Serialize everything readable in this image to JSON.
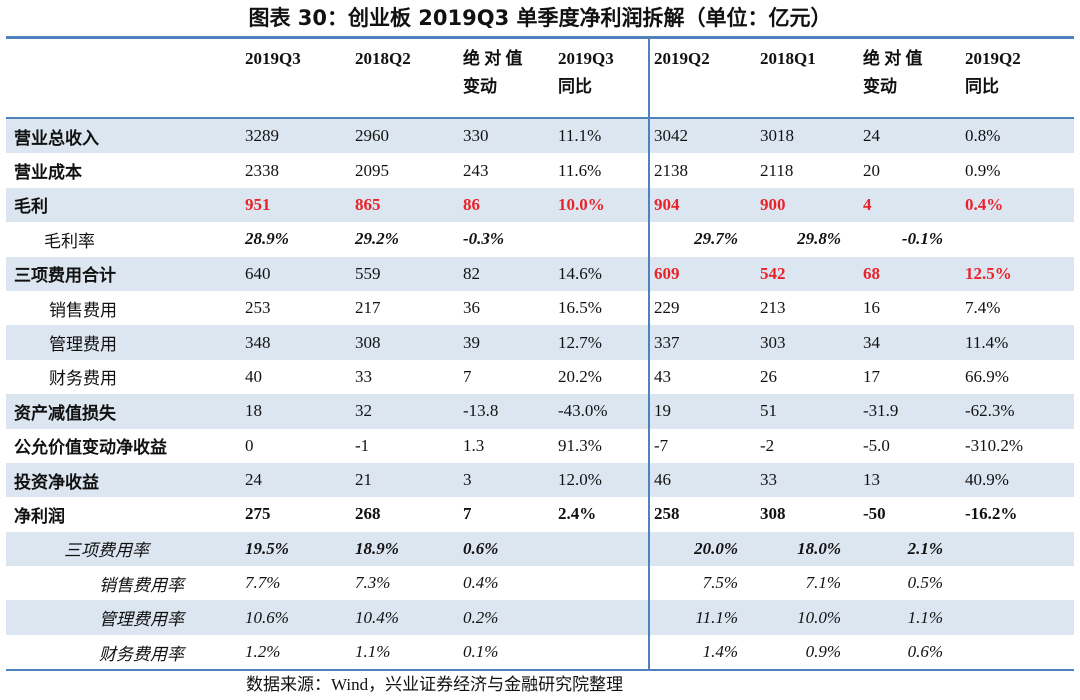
{
  "title": "图表 30：创业板 2019Q3 单季度净利润拆解（单位：亿元）",
  "table": {
    "headers": [
      [
        "2019Q3"
      ],
      [
        "2018Q2"
      ],
      [
        "绝 对 值",
        "变动"
      ],
      [
        "2019Q3",
        "同比"
      ],
      [
        "2019Q2"
      ],
      [
        "2018Q1"
      ],
      [
        "绝 对 值",
        "变动"
      ],
      [
        "2019Q2",
        "同比"
      ]
    ],
    "rows": [
      {
        "label": "营业总收入",
        "cells": [
          "3289",
          "2960",
          "330",
          "11.1%",
          "3042",
          "3018",
          "24",
          "0.8%"
        ]
      },
      {
        "label": "营业成本",
        "cells": [
          "2338",
          "2095",
          "243",
          "11.6%",
          "2138",
          "2118",
          "20",
          "0.9%"
        ]
      },
      {
        "label": "毛利",
        "cells": [
          "951",
          "865",
          "86",
          "10.0%",
          "904",
          "900",
          "4",
          "0.4%"
        ]
      },
      {
        "label": "毛利率",
        "cells": [
          "28.9%",
          "29.2%",
          "-0.3%",
          null,
          "29.7%",
          "29.8%",
          "-0.1%",
          null
        ]
      },
      {
        "label": "三项费用合计",
        "cells": [
          "640",
          "559",
          "82",
          "14.6%",
          "609",
          "542",
          "68",
          "12.5%"
        ]
      },
      {
        "label": "销售费用",
        "cells": [
          "253",
          "217",
          "36",
          "16.5%",
          "229",
          "213",
          "16",
          "7.4%"
        ]
      },
      {
        "label": "管理费用",
        "cells": [
          "348",
          "308",
          "39",
          "12.7%",
          "337",
          "303",
          "34",
          "11.4%"
        ]
      },
      {
        "label": "财务费用",
        "cells": [
          "40",
          "33",
          "7",
          "20.2%",
          "43",
          "26",
          "17",
          "66.9%"
        ]
      },
      {
        "label": "资产减值损失",
        "cells": [
          "18",
          "32",
          "-13.8",
          "-43.0%",
          "19",
          "51",
          "-31.9",
          "-62.3%"
        ]
      },
      {
        "label": "公允价值变动净收益",
        "cells": [
          "0",
          "-1",
          "1.3",
          "91.3%",
          "-7",
          "-2",
          "-5.0",
          "-310.2%"
        ]
      },
      {
        "label": "投资净收益",
        "cells": [
          "24",
          "21",
          "3",
          "12.0%",
          "46",
          "33",
          "13",
          "40.9%"
        ]
      },
      {
        "label": "净利润",
        "cells": [
          "275",
          "268",
          "7",
          "2.4%",
          "258",
          "308",
          "-50",
          "-16.2%"
        ]
      },
      {
        "label": "三项费用率",
        "cells": [
          "19.5%",
          "18.9%",
          "0.6%",
          null,
          "20.0%",
          "18.0%",
          "2.1%",
          null
        ]
      },
      {
        "label": "销售费用率",
        "cells": [
          "7.7%",
          "7.3%",
          "0.4%",
          null,
          "7.5%",
          "7.1%",
          "0.5%",
          null
        ]
      },
      {
        "label": "管理费用率",
        "cells": [
          "10.6%",
          "10.4%",
          "0.2%",
          null,
          "11.1%",
          "10.0%",
          "1.1%",
          null
        ]
      },
      {
        "label": "财务费用率",
        "cells": [
          "1.2%",
          "1.1%",
          "0.1%",
          null,
          "1.4%",
          "0.9%",
          "0.6%",
          null
        ]
      }
    ]
  },
  "source": "数据来源：Wind，兴业证券经济与金融研究院整理"
}
